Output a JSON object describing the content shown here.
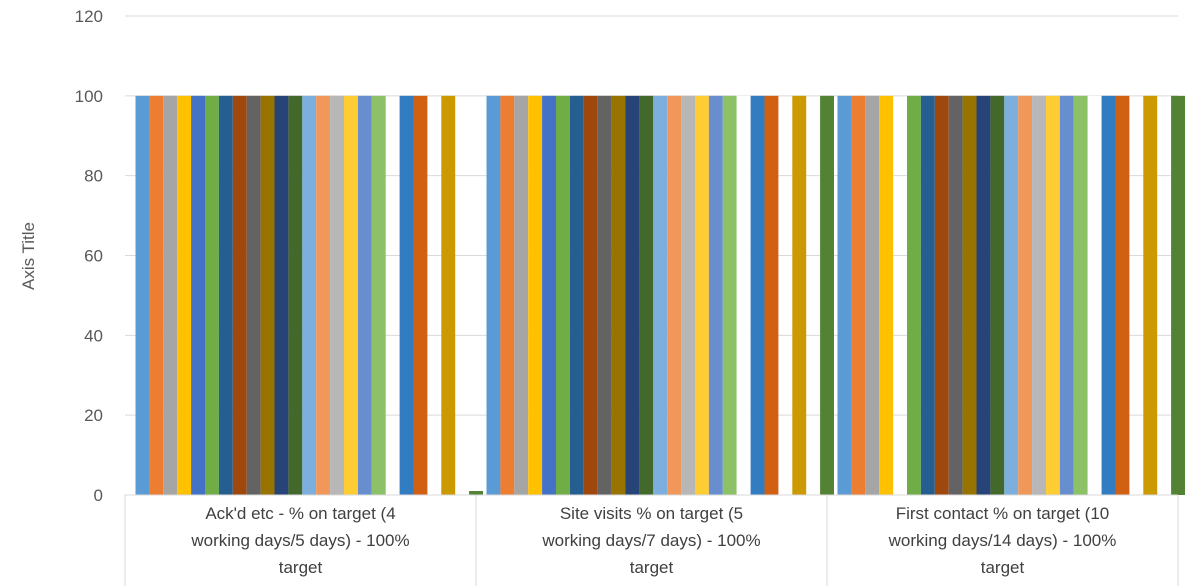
{
  "chart_data": {
    "type": "bar",
    "ylabel": "Axis Title",
    "ylim": [
      0,
      120
    ],
    "ytick_step": 20,
    "ytick_labels": [
      "0",
      "20",
      "40",
      "60",
      "80",
      "100",
      "120"
    ],
    "grid": true,
    "legend": "none",
    "categories": [
      [
        "Ack'd etc  - % on target (4",
        "working days/5 days) - 100%",
        "target"
      ],
      [
        "Site visits % on target (5",
        "working days/7 days) - 100%",
        "target"
      ],
      [
        "First contact % on target (10",
        "working days/14 days) - 100%",
        "target"
      ]
    ],
    "series": [
      {
        "color": "#5B9BD5",
        "values": [
          100,
          100,
          100
        ]
      },
      {
        "color": "#ED7D31",
        "values": [
          100,
          100,
          100
        ]
      },
      {
        "color": "#A5A5A5",
        "values": [
          100,
          100,
          100
        ]
      },
      {
        "color": "#FFC000",
        "values": [
          100,
          100,
          100
        ]
      },
      {
        "color": "#4472C4",
        "values": [
          100,
          100,
          0
        ]
      },
      {
        "color": "#70AD47",
        "values": [
          100,
          100,
          100
        ]
      },
      {
        "color": "#255E91",
        "values": [
          100,
          100,
          100
        ]
      },
      {
        "color": "#9E480E",
        "values": [
          100,
          100,
          100
        ]
      },
      {
        "color": "#636363",
        "values": [
          100,
          100,
          100
        ]
      },
      {
        "color": "#997300",
        "values": [
          100,
          100,
          100
        ]
      },
      {
        "color": "#264478",
        "values": [
          100,
          100,
          100
        ]
      },
      {
        "color": "#43682B",
        "values": [
          100,
          100,
          100
        ]
      },
      {
        "color": "#7CAFDD",
        "values": [
          100,
          100,
          100
        ]
      },
      {
        "color": "#F1975A",
        "values": [
          100,
          100,
          100
        ]
      },
      {
        "color": "#B7B7B7",
        "values": [
          100,
          100,
          100
        ]
      },
      {
        "color": "#FFCD33",
        "values": [
          100,
          100,
          100
        ]
      },
      {
        "color": "#698ED0",
        "values": [
          100,
          100,
          100
        ]
      },
      {
        "color": "#8CC168",
        "values": [
          100,
          100,
          100
        ]
      },
      {
        "color": "#FFFFFF",
        "values": [
          0,
          100,
          100
        ]
      },
      {
        "color": "#327DC2",
        "values": [
          100,
          100,
          100
        ]
      },
      {
        "color": "#D26012",
        "values": [
          100,
          100,
          100
        ]
      },
      {
        "color": "#FFFFFF",
        "values": [
          0,
          0,
          0
        ]
      },
      {
        "color": "#CC9A00",
        "values": [
          100,
          100,
          100
        ]
      },
      {
        "color": "#FFFFFF",
        "values": [
          0,
          0,
          0
        ]
      },
      {
        "color": "#548235",
        "values": [
          1,
          100,
          100
        ]
      }
    ]
  }
}
